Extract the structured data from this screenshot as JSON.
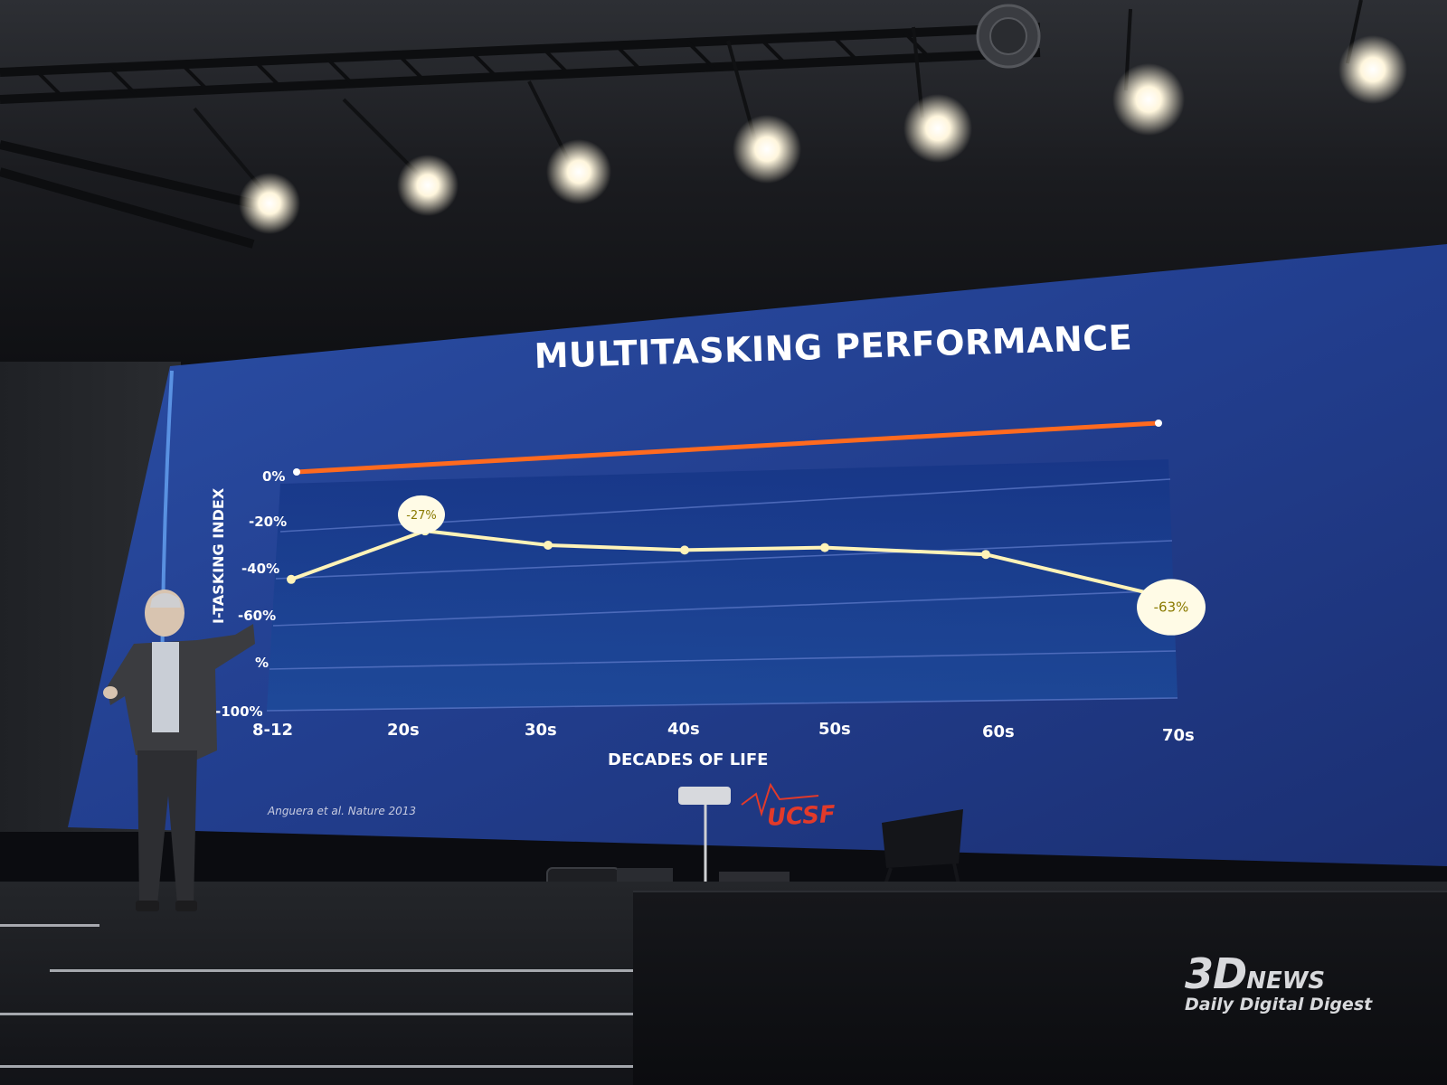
{
  "slide": {
    "title": "MULTITASKING PERFORMANCE",
    "citation": "Anguera et al. Nature 2013",
    "logo_text": "UCSF"
  },
  "chart_data": {
    "type": "line",
    "title": "MULTITASKING PERFORMANCE",
    "xlabel": "DECADES OF LIFE",
    "ylabel": "MULTI-TASKING INDEX",
    "visible_ylabel": "I-TASKING INDEX",
    "categories": [
      "8-12",
      "20s",
      "30s",
      "40s",
      "50s",
      "60s",
      "70s"
    ],
    "y_ticks": [
      "0%",
      "-20%",
      "-40%",
      "-60%",
      "%",
      "-100%"
    ],
    "ylim": [
      -100,
      0
    ],
    "series": [
      {
        "color": "#ff6a1f",
        "values": [
          0,
          0,
          0,
          0,
          0,
          0,
          0
        ]
      },
      {
        "color": "#fff3b8",
        "values": [
          -45,
          -27,
          -35,
          -39,
          -40,
          -45,
          -63
        ]
      }
    ],
    "annotations": [
      {
        "category": "20s",
        "text": "-27%"
      },
      {
        "category": "70s",
        "text": "-63%"
      }
    ],
    "grid": true
  },
  "watermark": {
    "brand": "3D",
    "brand_suffix": "NEWS",
    "tagline": "Daily Digital Digest"
  },
  "colors": {
    "screen": "#26408c",
    "baseline": "#ff6a1f",
    "line": "#fff3b8",
    "bubble_text": "#8a7a00"
  }
}
